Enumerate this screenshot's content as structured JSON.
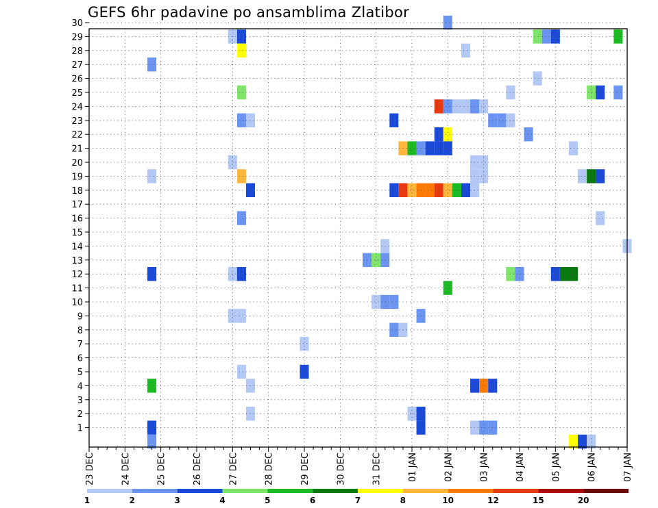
{
  "chart_data": {
    "type": "heatmap",
    "title": "GEFS 6hr padavine po ansamblima Zlatibor",
    "xlabel": "",
    "ylabel": "",
    "x_tick_labels": [
      "23 DEC",
      "24 DEC",
      "25 DEC",
      "26 DEC",
      "27 DEC",
      "28 DEC",
      "29 DEC",
      "30 DEC",
      "31 DEC",
      "01 JAN",
      "02 JAN",
      "03 JAN",
      "04 JAN",
      "05 JAN",
      "06 JAN",
      "07 JAN"
    ],
    "y_tick_labels": [
      "1",
      "2",
      "3",
      "4",
      "5",
      "6",
      "7",
      "8",
      "9",
      "10",
      "11",
      "12",
      "13",
      "14",
      "15",
      "16",
      "17",
      "18",
      "19",
      "20",
      "21",
      "22",
      "23",
      "24",
      "25",
      "26",
      "27",
      "28",
      "29",
      "30"
    ],
    "xlim_steps": [
      0,
      60
    ],
    "ylim": [
      0,
      30
    ],
    "grid": true,
    "legend_position": "bottom",
    "color_levels": [
      {
        "label": "1",
        "color": "#b4c8f5"
      },
      {
        "label": "2",
        "color": "#6a94f0"
      },
      {
        "label": "3",
        "color": "#1c4ad8"
      },
      {
        "label": "4",
        "color": "#7ee56a"
      },
      {
        "label": "5",
        "color": "#1cbb23"
      },
      {
        "label": "6",
        "color": "#0a7a10"
      },
      {
        "label": "7",
        "color": "#ffff00"
      },
      {
        "label": "8",
        "color": "#ffb63c"
      },
      {
        "label": "10",
        "color": "#ff7a00"
      },
      {
        "label": "12",
        "color": "#e83a10"
      },
      {
        "label": "15",
        "color": "#a80c0c"
      },
      {
        "label": "20",
        "color": "#6a0808"
      }
    ],
    "cells": [
      {
        "member": 30,
        "step": 40,
        "level": 1
      },
      {
        "member": 29,
        "step": 16,
        "level": 0
      },
      {
        "member": 29,
        "step": 17,
        "level": 2
      },
      {
        "member": 29,
        "step": 50,
        "level": 3
      },
      {
        "member": 29,
        "step": 51,
        "level": 1
      },
      {
        "member": 29,
        "step": 52,
        "level": 2
      },
      {
        "member": 29,
        "step": 59,
        "level": 4
      },
      {
        "member": 28,
        "step": 17,
        "level": 6
      },
      {
        "member": 28,
        "step": 42,
        "level": 0
      },
      {
        "member": 27,
        "step": 7,
        "level": 1
      },
      {
        "member": 26,
        "step": 50,
        "level": 0
      },
      {
        "member": 25,
        "step": 17,
        "level": 3
      },
      {
        "member": 25,
        "step": 47,
        "level": 0
      },
      {
        "member": 25,
        "step": 56,
        "level": 3
      },
      {
        "member": 25,
        "step": 57,
        "level": 2
      },
      {
        "member": 25,
        "step": 59,
        "level": 1
      },
      {
        "member": 24,
        "step": 39,
        "level": 9
      },
      {
        "member": 24,
        "step": 40,
        "level": 1
      },
      {
        "member": 24,
        "step": 41,
        "level": 0
      },
      {
        "member": 24,
        "step": 42,
        "level": 0
      },
      {
        "member": 24,
        "step": 43,
        "level": 1
      },
      {
        "member": 24,
        "step": 44,
        "level": 0
      },
      {
        "member": 23,
        "step": 17,
        "level": 1
      },
      {
        "member": 23,
        "step": 18,
        "level": 0
      },
      {
        "member": 23,
        "step": 34,
        "level": 2
      },
      {
        "member": 23,
        "step": 45,
        "level": 1
      },
      {
        "member": 23,
        "step": 46,
        "level": 1
      },
      {
        "member": 23,
        "step": 47,
        "level": 0
      },
      {
        "member": 22,
        "step": 39,
        "level": 2
      },
      {
        "member": 22,
        "step": 40,
        "level": 6
      },
      {
        "member": 22,
        "step": 49,
        "level": 1
      },
      {
        "member": 21,
        "step": 35,
        "level": 7
      },
      {
        "member": 21,
        "step": 36,
        "level": 4
      },
      {
        "member": 21,
        "step": 37,
        "level": 1
      },
      {
        "member": 21,
        "step": 38,
        "level": 2
      },
      {
        "member": 21,
        "step": 39,
        "level": 2
      },
      {
        "member": 21,
        "step": 40,
        "level": 2
      },
      {
        "member": 21,
        "step": 54,
        "level": 0
      },
      {
        "member": 20,
        "step": 16,
        "level": 0
      },
      {
        "member": 20,
        "step": 43,
        "level": 0
      },
      {
        "member": 20,
        "step": 44,
        "level": 0
      },
      {
        "member": 19,
        "step": 7,
        "level": 0
      },
      {
        "member": 19,
        "step": 17,
        "level": 7
      },
      {
        "member": 19,
        "step": 43,
        "level": 0
      },
      {
        "member": 19,
        "step": 44,
        "level": 0
      },
      {
        "member": 19,
        "step": 55,
        "level": 0
      },
      {
        "member": 19,
        "step": 56,
        "level": 5
      },
      {
        "member": 19,
        "step": 57,
        "level": 2
      },
      {
        "member": 18,
        "step": 18,
        "level": 2
      },
      {
        "member": 18,
        "step": 34,
        "level": 2
      },
      {
        "member": 18,
        "step": 35,
        "level": 9
      },
      {
        "member": 18,
        "step": 36,
        "level": 7
      },
      {
        "member": 18,
        "step": 37,
        "level": 8
      },
      {
        "member": 18,
        "step": 38,
        "level": 8
      },
      {
        "member": 18,
        "step": 39,
        "level": 9
      },
      {
        "member": 18,
        "step": 40,
        "level": 7
      },
      {
        "member": 18,
        "step": 41,
        "level": 4
      },
      {
        "member": 18,
        "step": 42,
        "level": 2
      },
      {
        "member": 18,
        "step": 43,
        "level": 0
      },
      {
        "member": 16,
        "step": 17,
        "level": 1
      },
      {
        "member": 16,
        "step": 57,
        "level": 0
      },
      {
        "member": 14,
        "step": 33,
        "level": 0
      },
      {
        "member": 14,
        "step": 60,
        "level": 0
      },
      {
        "member": 13,
        "step": 31,
        "level": 1
      },
      {
        "member": 13,
        "step": 32,
        "level": 3
      },
      {
        "member": 13,
        "step": 33,
        "level": 1
      },
      {
        "member": 12,
        "step": 7,
        "level": 2
      },
      {
        "member": 12,
        "step": 16,
        "level": 0
      },
      {
        "member": 12,
        "step": 17,
        "level": 2
      },
      {
        "member": 12,
        "step": 47,
        "level": 3
      },
      {
        "member": 12,
        "step": 48,
        "level": 1
      },
      {
        "member": 12,
        "step": 52,
        "level": 2
      },
      {
        "member": 12,
        "step": 53,
        "level": 5
      },
      {
        "member": 12,
        "step": 54,
        "level": 5
      },
      {
        "member": 11,
        "step": 40,
        "level": 4
      },
      {
        "member": 10,
        "step": 32,
        "level": 0
      },
      {
        "member": 10,
        "step": 33,
        "level": 1
      },
      {
        "member": 10,
        "step": 34,
        "level": 1
      },
      {
        "member": 9,
        "step": 16,
        "level": 0
      },
      {
        "member": 9,
        "step": 17,
        "level": 0
      },
      {
        "member": 9,
        "step": 37,
        "level": 1
      },
      {
        "member": 8,
        "step": 34,
        "level": 1
      },
      {
        "member": 8,
        "step": 35,
        "level": 0
      },
      {
        "member": 7,
        "step": 24,
        "level": 0
      },
      {
        "member": 5,
        "step": 17,
        "level": 0
      },
      {
        "member": 5,
        "step": 24,
        "level": 2
      },
      {
        "member": 4,
        "step": 7,
        "level": 4
      },
      {
        "member": 4,
        "step": 18,
        "level": 0
      },
      {
        "member": 4,
        "step": 43,
        "level": 2
      },
      {
        "member": 4,
        "step": 44,
        "level": 8
      },
      {
        "member": 4,
        "step": 45,
        "level": 2
      },
      {
        "member": 2,
        "step": 18,
        "level": 0
      },
      {
        "member": 2,
        "step": 36,
        "level": 0
      },
      {
        "member": 2,
        "step": 37,
        "level": 2
      },
      {
        "member": 1,
        "step": 7,
        "level": 2
      },
      {
        "member": 1,
        "step": 37,
        "level": 2
      },
      {
        "member": 1,
        "step": 43,
        "level": 0
      },
      {
        "member": 1,
        "step": 44,
        "level": 1
      },
      {
        "member": 1,
        "step": 45,
        "level": 1
      },
      {
        "member": 0,
        "step": 7,
        "level": 1
      },
      {
        "member": 0,
        "step": 54,
        "level": 6
      },
      {
        "member": 0,
        "step": 55,
        "level": 2
      },
      {
        "member": 0,
        "step": 56,
        "level": 0
      }
    ]
  }
}
